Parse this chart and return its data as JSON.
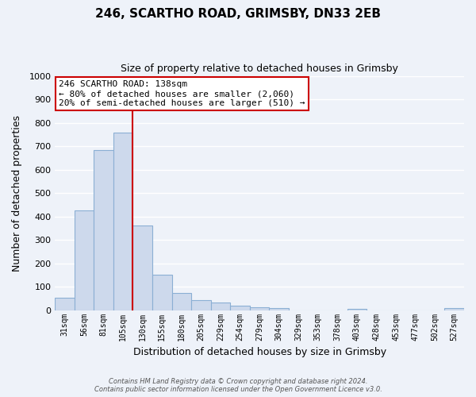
{
  "title": "246, SCARTHO ROAD, GRIMSBY, DN33 2EB",
  "subtitle": "Size of property relative to detached houses in Grimsby",
  "xlabel": "Distribution of detached houses by size in Grimsby",
  "ylabel": "Number of detached properties",
  "bar_labels": [
    "31sqm",
    "56sqm",
    "81sqm",
    "105sqm",
    "130sqm",
    "155sqm",
    "180sqm",
    "205sqm",
    "229sqm",
    "254sqm",
    "279sqm",
    "304sqm",
    "329sqm",
    "353sqm",
    "378sqm",
    "403sqm",
    "428sqm",
    "453sqm",
    "477sqm",
    "502sqm",
    "527sqm"
  ],
  "bar_values": [
    53,
    425,
    685,
    757,
    363,
    152,
    75,
    42,
    33,
    18,
    12,
    8,
    0,
    0,
    0,
    5,
    0,
    0,
    0,
    0,
    8
  ],
  "bar_color": "#cdd9ec",
  "bar_edge_color": "#8bafd4",
  "vline_x": 3.5,
  "vline_color": "#cc0000",
  "annotation_title": "246 SCARTHO ROAD: 138sqm",
  "annotation_line1": "← 80% of detached houses are smaller (2,060)",
  "annotation_line2": "20% of semi-detached houses are larger (510) →",
  "annotation_box_color": "#ffffff",
  "annotation_box_edge": "#cc0000",
  "ylim": [
    0,
    1000
  ],
  "yticks": [
    0,
    100,
    200,
    300,
    400,
    500,
    600,
    700,
    800,
    900,
    1000
  ],
  "footer_line1": "Contains HM Land Registry data © Crown copyright and database right 2024.",
  "footer_line2": "Contains public sector information licensed under the Open Government Licence v3.0.",
  "bg_color": "#eef2f9",
  "grid_color": "#ffffff",
  "plot_bg_color": "#eef2f9"
}
